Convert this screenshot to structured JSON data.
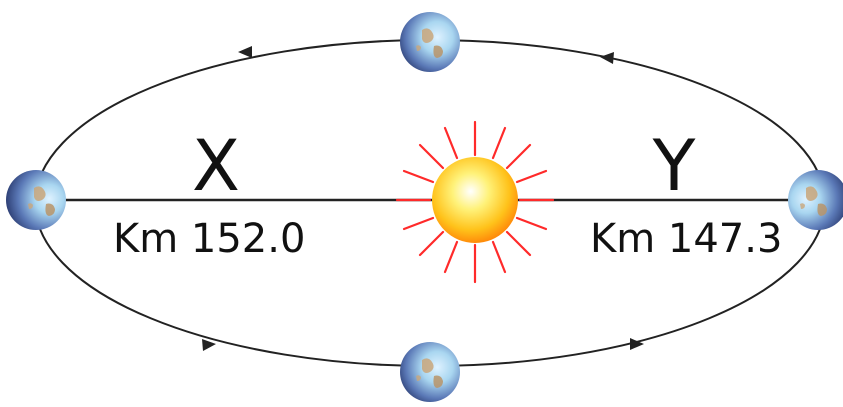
{
  "labels": {
    "left_point": "X",
    "right_point": "Y",
    "left_distance": "Km 152.0",
    "right_distance": "Km 147.3"
  },
  "colors": {
    "orbit": "#222222",
    "sun_ray": "#ff2a2a",
    "sun_core": "#ffffff",
    "sun_mid": "#ffdd33",
    "sun_edge": "#ff9a10",
    "ocean": "#a9d6f0",
    "land": "#c9a67a",
    "shadow": "#1d2a5c"
  },
  "icons": {
    "sun": "sun-icon",
    "earth": "earth-icon"
  }
}
